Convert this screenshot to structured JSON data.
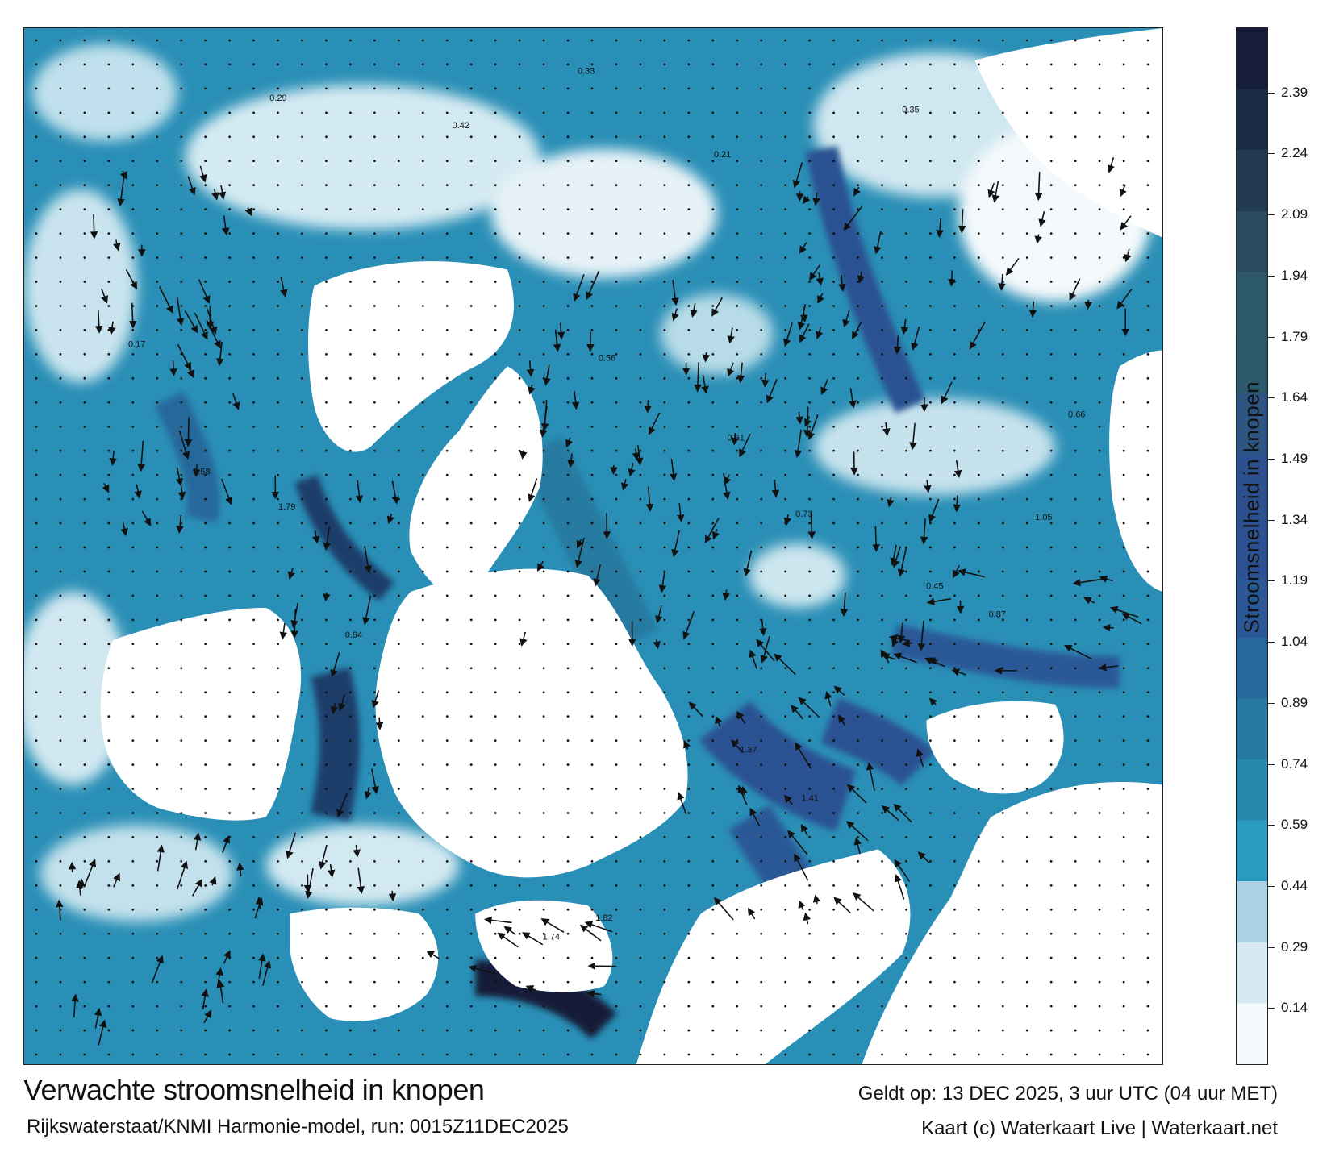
{
  "title": "Verwachte stroomsnelheid in knopen",
  "subtitle": "Rijkswaterstaat/KNMI Harmonie-model, run: 0015Z11DEC2025",
  "valid_time": "Geldt op: 13 DEC 2025, 3 uur UTC (04 uur MET)",
  "credits": "Kaart (c) Waterkaart Live | Waterkaart.net",
  "legend": {
    "title": "Stroomsnelheid in knopen",
    "unit": "knopen",
    "ticks": [
      "0.14",
      "0.29",
      "0.44",
      "0.59",
      "0.74",
      "0.89",
      "1.04",
      "1.19",
      "1.34",
      "1.49",
      "1.64",
      "1.79",
      "1.94",
      "2.09",
      "2.24",
      "2.39"
    ],
    "min": 0,
    "max": 2.55,
    "colors": [
      "#f4f9fb",
      "#d6e9f1",
      "#a9d2e2",
      "#2a9bc0",
      "#2688ad",
      "#267aa0",
      "#27679a",
      "#2a5897",
      "#2b5192",
      "#2c4f8d",
      "#2d5582",
      "#2e5a6e",
      "#2c5868",
      "#294a5f",
      "#223a54",
      "#1b2b46",
      "#161d38"
    ]
  },
  "map": {
    "sample_labels": [
      {
        "text": "0.29",
        "area": "north"
      },
      {
        "text": "0.42",
        "area": "north"
      },
      {
        "text": "0.33",
        "area": "north"
      },
      {
        "text": "0.21",
        "area": "north"
      },
      {
        "text": "0.56",
        "area": "center"
      },
      {
        "text": "0.61",
        "area": "center"
      },
      {
        "text": "0.73",
        "area": "center"
      },
      {
        "text": "0.87",
        "area": "east"
      },
      {
        "text": "1.05",
        "area": "east"
      },
      {
        "text": "1.37",
        "area": "south"
      },
      {
        "text": "1.41",
        "area": "south"
      },
      {
        "text": "1.74",
        "area": "south"
      },
      {
        "text": "1.82",
        "area": "south"
      },
      {
        "text": "1.79",
        "area": "west"
      },
      {
        "text": "0.94",
        "area": "west"
      },
      {
        "text": "0.58",
        "area": "west"
      },
      {
        "text": "0.17",
        "area": "west"
      },
      {
        "text": "0.35",
        "area": "northeast"
      },
      {
        "text": "0.45",
        "area": "east"
      },
      {
        "text": "0.66",
        "area": "east"
      }
    ]
  }
}
